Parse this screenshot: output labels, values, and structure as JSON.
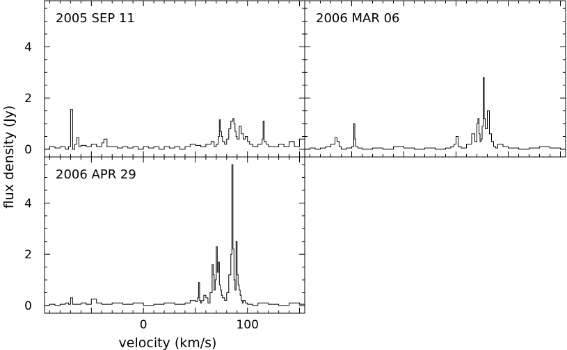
{
  "chart_data": [
    {
      "type": "line",
      "title": "2005 SEP 11",
      "ylabel": "flux density (Jy)",
      "xlabel": "",
      "xlim": [
        -95,
        155
      ],
      "ylim": [
        -0.3,
        5.8
      ],
      "yticks": [
        0,
        2,
        4
      ],
      "xticks": [],
      "series": [
        {
          "x": [
            -95,
            -90,
            -85,
            -80,
            -75,
            -72,
            -70,
            -68,
            -66,
            -64,
            -62,
            -60,
            -55,
            -50,
            -45,
            -40,
            -38,
            -35,
            -30,
            -25,
            -20,
            -15,
            -10,
            -5,
            0,
            5,
            10,
            15,
            20,
            25,
            30,
            35,
            40,
            45,
            50,
            55,
            60,
            65,
            68,
            70,
            72,
            73,
            74,
            75,
            76,
            78,
            80,
            82,
            84,
            86,
            87,
            88,
            89,
            90,
            92,
            94,
            96,
            98,
            100,
            102,
            105,
            110,
            114,
            115,
            116,
            118,
            120,
            125,
            130,
            135,
            140,
            145,
            150,
            155
          ],
          "y": [
            0,
            0.1,
            0.05,
            0.1,
            0,
            0.1,
            1.55,
            0,
            0.2,
            0.45,
            0.1,
            0.15,
            0.1,
            0.2,
            0.1,
            0.25,
            0.4,
            0.1,
            0.1,
            0.05,
            0.1,
            0.05,
            0.1,
            0,
            0.1,
            0.05,
            0.1,
            0,
            0.1,
            0.05,
            0.1,
            0,
            0.1,
            0.2,
            0.15,
            0.1,
            0.2,
            0.3,
            0.1,
            0.2,
            0.5,
            1.15,
            0.7,
            0.5,
            0.3,
            0.2,
            0.4,
            0.8,
            1.1,
            1.2,
            1.0,
            0.7,
            0.5,
            0.4,
            0.9,
            0.6,
            0.4,
            0.5,
            0.3,
            0.2,
            0.1,
            0.2,
            0.4,
            1.1,
            0.3,
            0.2,
            0.1,
            0.1,
            0.2,
            0.1,
            0.3,
            0.1,
            0.4,
            0.1
          ]
        }
      ]
    },
    {
      "type": "line",
      "title": "2006 MAR 06",
      "xlabel": "",
      "ylabel": "",
      "xlim": [
        -95,
        155
      ],
      "ylim": [
        -0.3,
        5.8
      ],
      "yticks": [
        0,
        2,
        4
      ],
      "xticks": [],
      "series": [
        {
          "x": [
            -95,
            -90,
            -85,
            -80,
            -75,
            -70,
            -66,
            -64,
            -62,
            -60,
            -55,
            -50,
            -48,
            -47,
            -46,
            -44,
            -40,
            -30,
            -20,
            -10,
            0,
            10,
            20,
            30,
            40,
            45,
            48,
            50,
            52,
            55,
            60,
            65,
            68,
            70,
            71,
            72,
            73,
            74,
            75,
            76,
            77,
            78,
            80,
            82,
            84,
            86,
            88,
            90,
            95,
            100,
            110,
            120,
            130,
            140,
            150,
            155
          ],
          "y": [
            0,
            0.05,
            0,
            0.05,
            0.1,
            0.2,
            0.45,
            0.3,
            0.1,
            0,
            0.05,
            0.1,
            1.0,
            0.4,
            0.1,
            0.05,
            0,
            0.05,
            0,
            0.1,
            0.05,
            0,
            0.05,
            0,
            0.05,
            0.1,
            0.2,
            0.5,
            0.1,
            0.05,
            0.2,
            0.6,
            0.3,
            1.0,
            1.2,
            0.6,
            0.3,
            0.4,
            0.9,
            2.8,
            1.2,
            0.8,
            1.5,
            0.6,
            0.3,
            0.1,
            0.05,
            0.2,
            0.1,
            0.05,
            0,
            0.05,
            0.1,
            0.05,
            0,
            0.05
          ]
        }
      ]
    },
    {
      "type": "line",
      "title": "2006 APR 29",
      "xlabel": "velocity (km/s)",
      "ylabel": "",
      "xlim": [
        -95,
        155
      ],
      "ylim": [
        -0.3,
        5.8
      ],
      "yticks": [
        0,
        2,
        4
      ],
      "xticks": [
        0,
        100
      ],
      "series": [
        {
          "x": [
            -95,
            -90,
            -85,
            -80,
            -75,
            -72,
            -70,
            -68,
            -60,
            -55,
            -50,
            -45,
            -40,
            -30,
            -20,
            -10,
            0,
            10,
            20,
            30,
            40,
            45,
            50,
            52,
            53,
            54,
            55,
            56,
            58,
            60,
            62,
            64,
            66,
            67,
            68,
            69,
            70,
            71,
            72,
            73,
            74,
            75,
            76,
            78,
            80,
            82,
            84,
            85,
            86,
            87,
            88,
            89,
            90,
            91,
            92,
            93,
            94,
            95,
            96,
            98,
            100,
            105,
            110,
            120,
            130,
            140,
            150,
            155
          ],
          "y": [
            0,
            0.05,
            0,
            0.05,
            0.1,
            0.05,
            0.3,
            0.05,
            0.1,
            0.05,
            0.25,
            0.1,
            0.05,
            0.1,
            0.05,
            0.1,
            0,
            0.05,
            0.1,
            0.05,
            0.1,
            0.2,
            0.15,
            0.3,
            0.9,
            0.2,
            0.1,
            0.2,
            0.4,
            0.3,
            0.1,
            0.5,
            1.6,
            1.2,
            0.6,
            1.0,
            2.3,
            1.3,
            1.7,
            0.8,
            0.6,
            0.4,
            0.3,
            0.2,
            0.5,
            1.2,
            2.0,
            5.5,
            2.2,
            1.0,
            0.6,
            2.5,
            1.2,
            0.8,
            0.6,
            0.4,
            0.2,
            0.1,
            0.2,
            0.1,
            0.05,
            0,
            0.1,
            0.05,
            0,
            0.1,
            0.05,
            0
          ]
        }
      ]
    }
  ]
}
